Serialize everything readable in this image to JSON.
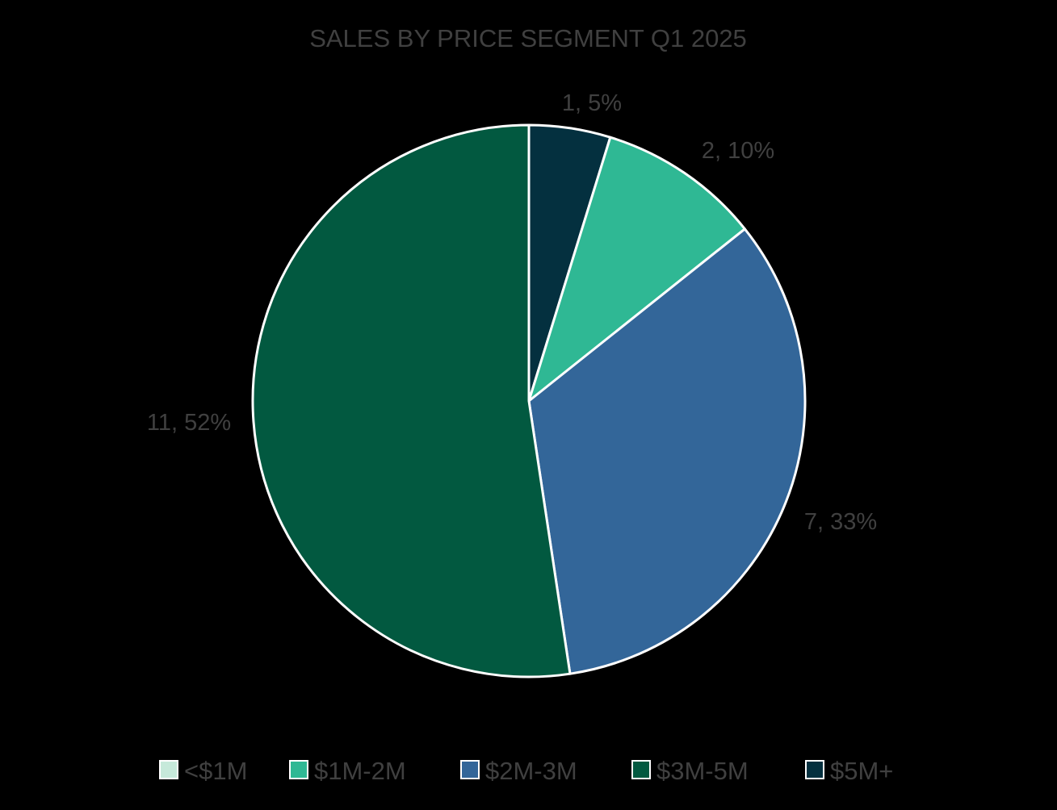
{
  "chart_data": {
    "type": "pie",
    "title": "SALES BY PRICE SEGMENT Q1 2025",
    "categories": [
      "<$1M",
      "$1M-2M",
      "$2M-3M",
      "$3M-5M",
      "$5M+"
    ],
    "values": [
      0,
      2,
      7,
      11,
      1
    ],
    "percent_labels": [
      "0%",
      "10%",
      "33%",
      "52%",
      "5%"
    ],
    "data_labels": [
      "",
      "2, 10%",
      "7, 33%",
      "11, 52%",
      "1, 5%"
    ],
    "colors": [
      "#C6E9DA",
      "#2FB894",
      "#336699",
      "#025940",
      "#04303F"
    ],
    "slice_border_color": "#FFFFFF",
    "legend_position": "bottom",
    "start_at_top_clockwise": true,
    "slice_order": [
      0,
      4,
      1,
      2,
      3
    ]
  }
}
